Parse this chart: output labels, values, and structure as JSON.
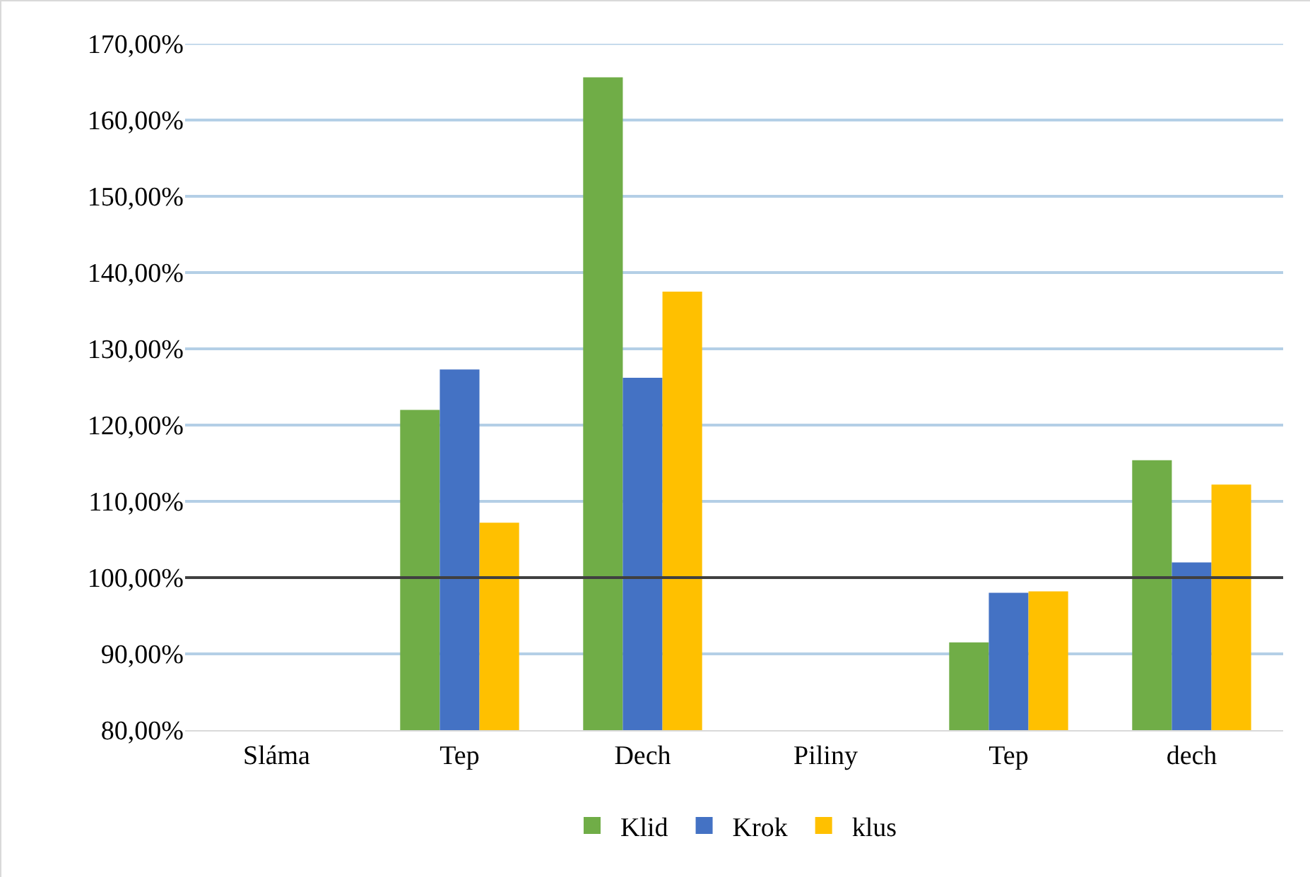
{
  "chart_data": {
    "type": "bar",
    "categories": [
      "Sláma",
      "Tep",
      "Dech",
      "Piliny",
      "Tep",
      "dech"
    ],
    "series": [
      {
        "name": "Klid",
        "color": "#70ad47",
        "values": [
          null,
          122,
          165.6,
          null,
          91.5,
          115.4
        ]
      },
      {
        "name": "Krok",
        "color": "#4472c4",
        "values": [
          null,
          127.3,
          126.2,
          null,
          98,
          102
        ]
      },
      {
        "name": "klus",
        "color": "#ffc000",
        "values": [
          null,
          107.2,
          137.5,
          null,
          98.2,
          112.2
        ]
      }
    ],
    "ylim": [
      80,
      170
    ],
    "yticks": [
      {
        "value": 80,
        "label": "80,00%"
      },
      {
        "value": 90,
        "label": "90,00%"
      },
      {
        "value": 100,
        "label": "100,00%"
      },
      {
        "value": 110,
        "label": "110,00%"
      },
      {
        "value": 120,
        "label": "120,00%"
      },
      {
        "value": 130,
        "label": "130,00%"
      },
      {
        "value": 140,
        "label": "140,00%"
      },
      {
        "value": 150,
        "label": "150,00%"
      },
      {
        "value": 160,
        "label": "160,00%"
      },
      {
        "value": 170,
        "label": "170,00%"
      }
    ],
    "ref_lines": [
      {
        "axis": "y",
        "value": 100,
        "color": "#404040"
      }
    ],
    "grid": "y",
    "legend": "bottom"
  }
}
